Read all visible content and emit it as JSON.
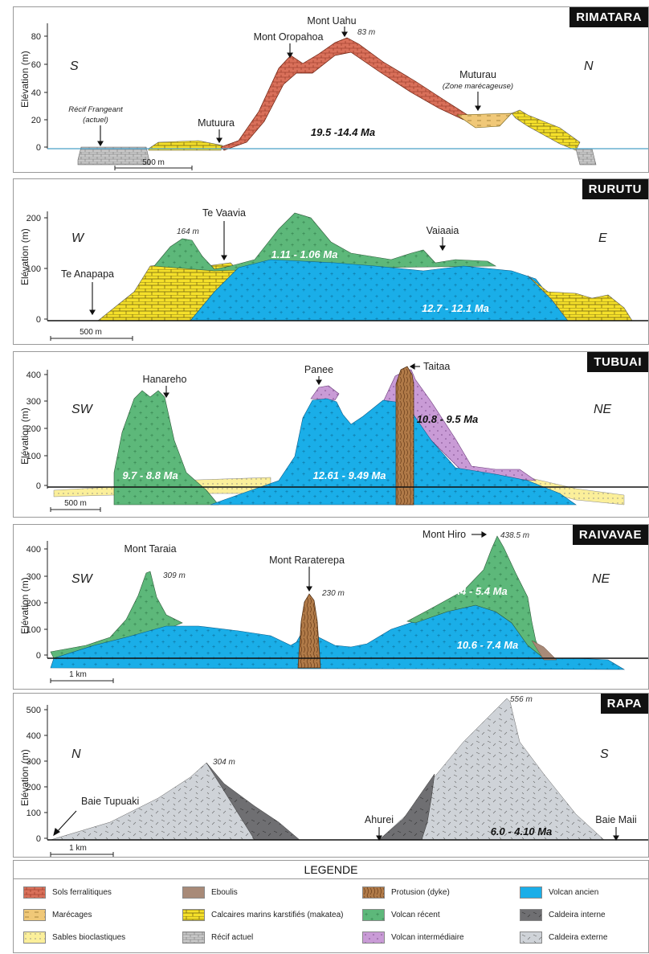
{
  "panels": [
    {
      "name": "RIMATARA",
      "ylabel": "Elévation (m)",
      "yticks": [
        "80",
        "60",
        "40",
        "20",
        "0"
      ],
      "left_dir": "S",
      "right_dir": "N",
      "labels": {
        "uahu": "Mont Uahu",
        "uahu_h": "83 m",
        "oropahoa": "Mont Oropahoa",
        "muturau": "Muturau",
        "muturau_sub": "(Zone marécageuse)",
        "mutuura": "Mutuura",
        "recif1": "Récif Frangeant",
        "recif2": "(actuel)"
      },
      "age": "19.5 -14.4 Ma",
      "scale": "500 m"
    },
    {
      "name": "RURUTU",
      "ylabel": "Elévation (m)",
      "yticks": [
        "200",
        "100",
        "0"
      ],
      "left_dir": "W",
      "right_dir": "E",
      "labels": {
        "peak_h": "164 m",
        "vaavia": "Te Vaavia",
        "anapapa": "Te Anapapa",
        "vaiaaia": "Vaiaaia"
      },
      "age_recent": "1.11 - 1.06 Ma",
      "age_old": "12.7 - 12.1 Ma",
      "scale": "500 m"
    },
    {
      "name": "TUBUAI",
      "ylabel": "Elévation (m)",
      "yticks": [
        "400",
        "300",
        "200",
        "100",
        "0"
      ],
      "left_dir": "SW",
      "right_dir": "NE",
      "labels": {
        "hanareho": "Hanareho",
        "panee": "Panee",
        "taitaa": "Taitaa"
      },
      "age_left": "9.7 - 8.8 Ma",
      "age_mid": "12.61 - 9.49 Ma",
      "age_right": "10.8 - 9.5 Ma",
      "scale": "500 m"
    },
    {
      "name": "RAIVAVAE",
      "ylabel": "Elévation (m)",
      "yticks": [
        "400",
        "300",
        "200",
        "100",
        "0"
      ],
      "left_dir": "SW",
      "right_dir": "NE",
      "labels": {
        "taraia": "Mont Taraia",
        "taraia_h": "309 m",
        "raraterepa": "Mont Raraterepa",
        "raraterepa_h": "230 m",
        "hiro": "Mont Hiro",
        "hiro_h": "438.5 m"
      },
      "age_recent": "6.4 - 5.4 Ma",
      "age_old": "10.6 - 7.4 Ma",
      "scale": "1 km"
    },
    {
      "name": "RAPA",
      "ylabel": "Elévation (m)",
      "yticks": [
        "500",
        "400",
        "300",
        "200",
        "100",
        "0"
      ],
      "left_dir": "N",
      "right_dir": "S",
      "labels": {
        "peak1_h": "304 m",
        "peak2_h": "556 m",
        "tupuaki": "Baie Tupuaki",
        "ahurei": "Ahurei",
        "maii": "Baie Maii"
      },
      "age": "6.0 - 4.10 Ma",
      "scale": "1 km"
    }
  ],
  "legend": {
    "title": "LEGENDE",
    "items": [
      {
        "label": "Sols ferralitiques",
        "color": "#d9705a"
      },
      {
        "label": "Eboulis",
        "color": "#a88a78"
      },
      {
        "label": "Protusion (dyke)",
        "color": "#b07a48"
      },
      {
        "label": "Volcan ancien",
        "color": "#1aaee8"
      },
      {
        "label": "Marécages",
        "color": "#f0c878"
      },
      {
        "label": "Calcaires marins karstifiés (makatea)",
        "color": "#f5e02a"
      },
      {
        "label": "Volcan récent",
        "color": "#5db87a"
      },
      {
        "label": "Caldeira interne",
        "color": "#6f6f72"
      },
      {
        "label": "Sables bioclastiques",
        "color": "#fbef9a"
      },
      {
        "label": "Récif actuel",
        "color": "#c8c8c8"
      },
      {
        "label": "Volcan intermédiaire",
        "color": "#c99bd6"
      },
      {
        "label": "Caldeira externe",
        "color": "#cfd3d8"
      }
    ]
  }
}
